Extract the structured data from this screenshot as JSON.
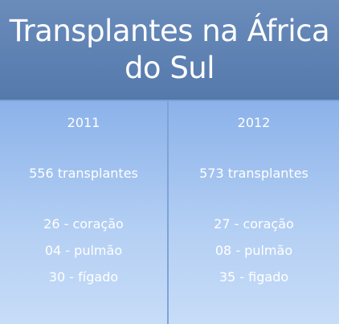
{
  "header": {
    "title": "Transplantes na África do Sul"
  },
  "columns": [
    {
      "year": "2011",
      "total": "556 transplantes",
      "items": [
        "26 - coração",
        "04 - pulmão",
        "30 - fígado"
      ]
    },
    {
      "year": "2012",
      "total": "573 transplantes",
      "items": [
        "27 - coração",
        "08 - pulmão",
        "35 - figado"
      ]
    }
  ]
}
